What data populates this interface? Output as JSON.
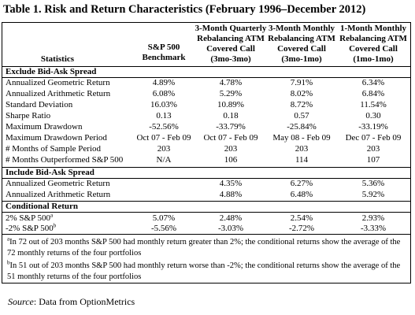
{
  "title": "Table 1. Risk and Return Characteristics (February 1996–December 2012)",
  "headers": {
    "statistics": "Statistics",
    "col1": [
      "S&P 500",
      "Benchmark"
    ],
    "col2": [
      "3-Month Quarterly",
      "Rebalancing ATM",
      "Covered Call",
      "(3mo-3mo)"
    ],
    "col3": [
      "3-Month Monthly",
      "Rebalancing ATM",
      "Covered Call",
      "(3mo-1mo)"
    ],
    "col4": [
      "1-Month Monthly",
      "Rebalancing ATM",
      "Covered Call",
      "(1mo-1mo)"
    ]
  },
  "sections": [
    {
      "title": "Exclude Bid-Ask Spread",
      "rows": [
        {
          "label": "Annualized Geometric Return",
          "values": [
            "4.89%",
            "4.78%",
            "7.91%",
            "6.34%"
          ]
        },
        {
          "label": "Annualized Arithmetic Return",
          "values": [
            "6.08%",
            "5.29%",
            "8.02%",
            "6.84%"
          ]
        },
        {
          "label": "Standard Deviation",
          "values": [
            "16.03%",
            "10.89%",
            "8.72%",
            "11.54%"
          ]
        },
        {
          "label": "Sharpe Ratio",
          "values": [
            "0.13",
            "0.18",
            "0.57",
            "0.30"
          ]
        },
        {
          "label": "Maximum Drawdown",
          "values": [
            "-52.56%",
            "-33.79%",
            "-25.84%",
            "-33.19%"
          ]
        },
        {
          "label": "Maximum Drawdown Period",
          "values": [
            "Oct 07 - Feb 09",
            "Oct 07 - Feb 09",
            "May 08 - Feb 09",
            "Dec 07 - Feb 09"
          ]
        },
        {
          "label": "# Months of Sample Period",
          "values": [
            "203",
            "203",
            "203",
            "203"
          ]
        },
        {
          "label": "# Months Outperformed S&P 500",
          "values": [
            "N/A",
            "106",
            "114",
            "107"
          ]
        }
      ]
    },
    {
      "title": "Include Bid-Ask Spread",
      "rows": [
        {
          "label": "Annualized Geometric Return",
          "values": [
            "",
            "4.35%",
            "6.27%",
            "5.36%"
          ]
        },
        {
          "label": "Annualized Arithmetic Return",
          "values": [
            "",
            "4.88%",
            "6.48%",
            "5.92%"
          ]
        }
      ]
    },
    {
      "title": "Conditional Return",
      "rows": [
        {
          "label": "2% S&P 500",
          "sup": "a",
          "values": [
            "5.07%",
            "2.48%",
            "2.54%",
            "2.93%"
          ]
        },
        {
          "label": "-2% S&P 500",
          "sup": "b",
          "values": [
            "-5.56%",
            "-3.03%",
            "-2.72%",
            "-3.33%"
          ]
        }
      ]
    }
  ],
  "footnotes": [
    {
      "mark": "a",
      "lines": [
        "In 72 out of 203 months S&P 500 had monthly return greater than 2%; the conditional returns show the average of the",
        "72 monthly returns of the four portfolios"
      ]
    },
    {
      "mark": "b",
      "lines": [
        "In 51 out of 203 months S&P 500 had monthly return worse than -2%; the conditional returns show the average of the",
        "51 monthly returns of the four portfolios"
      ]
    }
  ],
  "source": {
    "label": "Source",
    "text": ": Data from OptionMetrics"
  }
}
